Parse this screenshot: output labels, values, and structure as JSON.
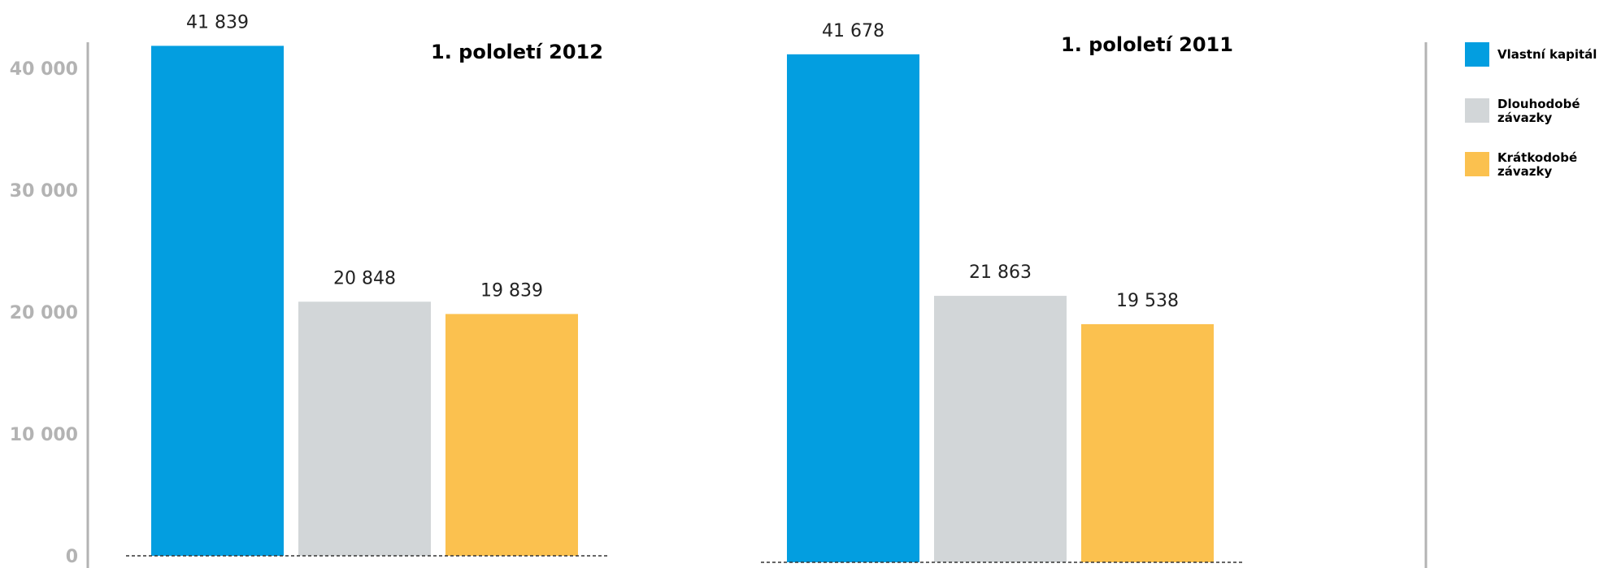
{
  "chart_data": {
    "type": "bar",
    "categories": [
      "Vlastní kapitál",
      "Dlouhodobé závazky",
      "Krátkodobé závazky"
    ],
    "colors": [
      "#039ee0",
      "#d2d6d8",
      "#fbc14f"
    ],
    "ylim": [
      0,
      40000
    ],
    "yticks": [
      {
        "value": 0,
        "label": "0"
      },
      {
        "value": 10000,
        "label": "10 000"
      },
      {
        "value": 20000,
        "label": "20 000"
      },
      {
        "value": 30000,
        "label": "30 000"
      },
      {
        "value": 40000,
        "label": "40 000"
      }
    ],
    "panels": [
      {
        "title": "1. pololetí 2012",
        "values": [
          41839,
          20848,
          19839
        ],
        "labels": [
          "41 839",
          "20 848",
          "19 839"
        ]
      },
      {
        "title": "1. pololetí 2011",
        "values": [
          41678,
          21863,
          19538
        ],
        "labels": [
          "41 678",
          "21 863",
          "19 538"
        ]
      }
    ],
    "legend": {
      "position": "right",
      "items": [
        {
          "lines": [
            "Vlastní kapitál"
          ],
          "color": "#039ee0"
        },
        {
          "lines": [
            "Dlouhodobé",
            "závazky"
          ],
          "color": "#d2d6d8"
        },
        {
          "lines": [
            "Krátkodobé",
            "závazky"
          ],
          "color": "#fbc14f"
        }
      ]
    },
    "grid": false
  }
}
